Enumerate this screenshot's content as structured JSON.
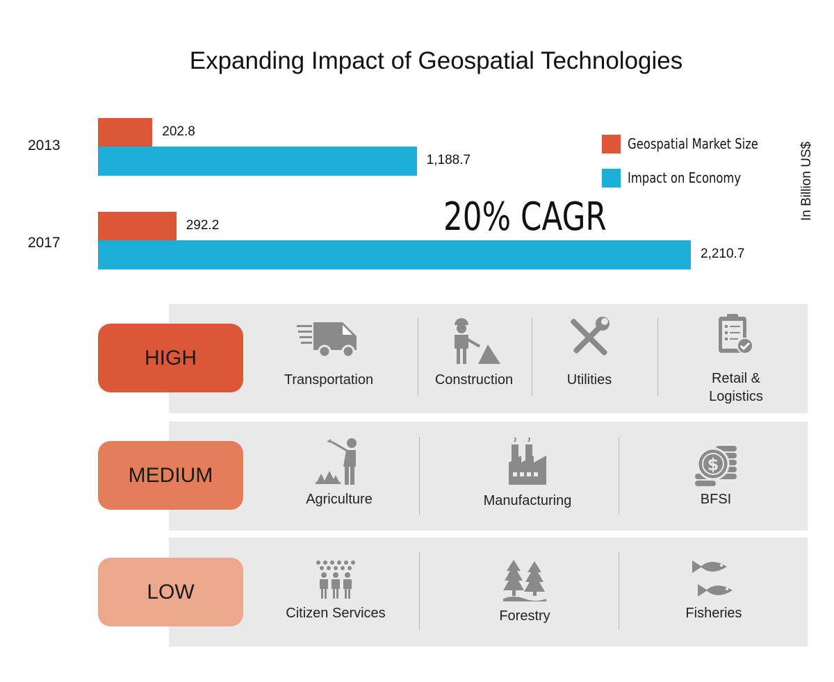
{
  "colors": {
    "market": "#dc5638",
    "economy": "#1caed6",
    "high": "#dc5638",
    "medium": "#e47e5a",
    "low": "#eba88c",
    "panel": "#e9e9ea",
    "icon": "#8a8a8a"
  },
  "chart_data": {
    "type": "bar",
    "orientation": "horizontal",
    "title": "Expanding Impact of Geospatial Technologies",
    "categories": [
      "2013",
      "2017"
    ],
    "series": [
      {
        "name": "Geospatial Market Size",
        "values": [
          202.8,
          292.2
        ],
        "labels": [
          "202.8",
          "292.2"
        ]
      },
      {
        "name": "Impact on Economy",
        "values": [
          1188.7,
          2210.7
        ],
        "labels": [
          "1,188.7",
          "2,210.7"
        ]
      }
    ],
    "unit_label": "In Billion US$",
    "annotation": "20% CAGR",
    "legend_position": "top-right",
    "grid": false
  },
  "levels": [
    {
      "label": "HIGH",
      "sectors": [
        {
          "name": "Transportation",
          "icon": "truck-icon"
        },
        {
          "name": "Construction",
          "icon": "construction-worker-icon"
        },
        {
          "name": "Utilities",
          "icon": "wrench-screwdriver-icon"
        },
        {
          "name": "Retail &\nLogistics",
          "icon": "clipboard-check-icon"
        }
      ]
    },
    {
      "label": "MEDIUM",
      "sectors": [
        {
          "name": "Agriculture",
          "icon": "farmer-icon"
        },
        {
          "name": "Manufacturing",
          "icon": "factory-icon"
        },
        {
          "name": "BFSI",
          "icon": "coins-dollar-icon"
        }
      ]
    },
    {
      "label": "LOW",
      "sectors": [
        {
          "name": "Citizen Services",
          "icon": "people-group-icon"
        },
        {
          "name": "Forestry",
          "icon": "pine-trees-icon"
        },
        {
          "name": "Fisheries",
          "icon": "fish-icon"
        }
      ]
    }
  ]
}
